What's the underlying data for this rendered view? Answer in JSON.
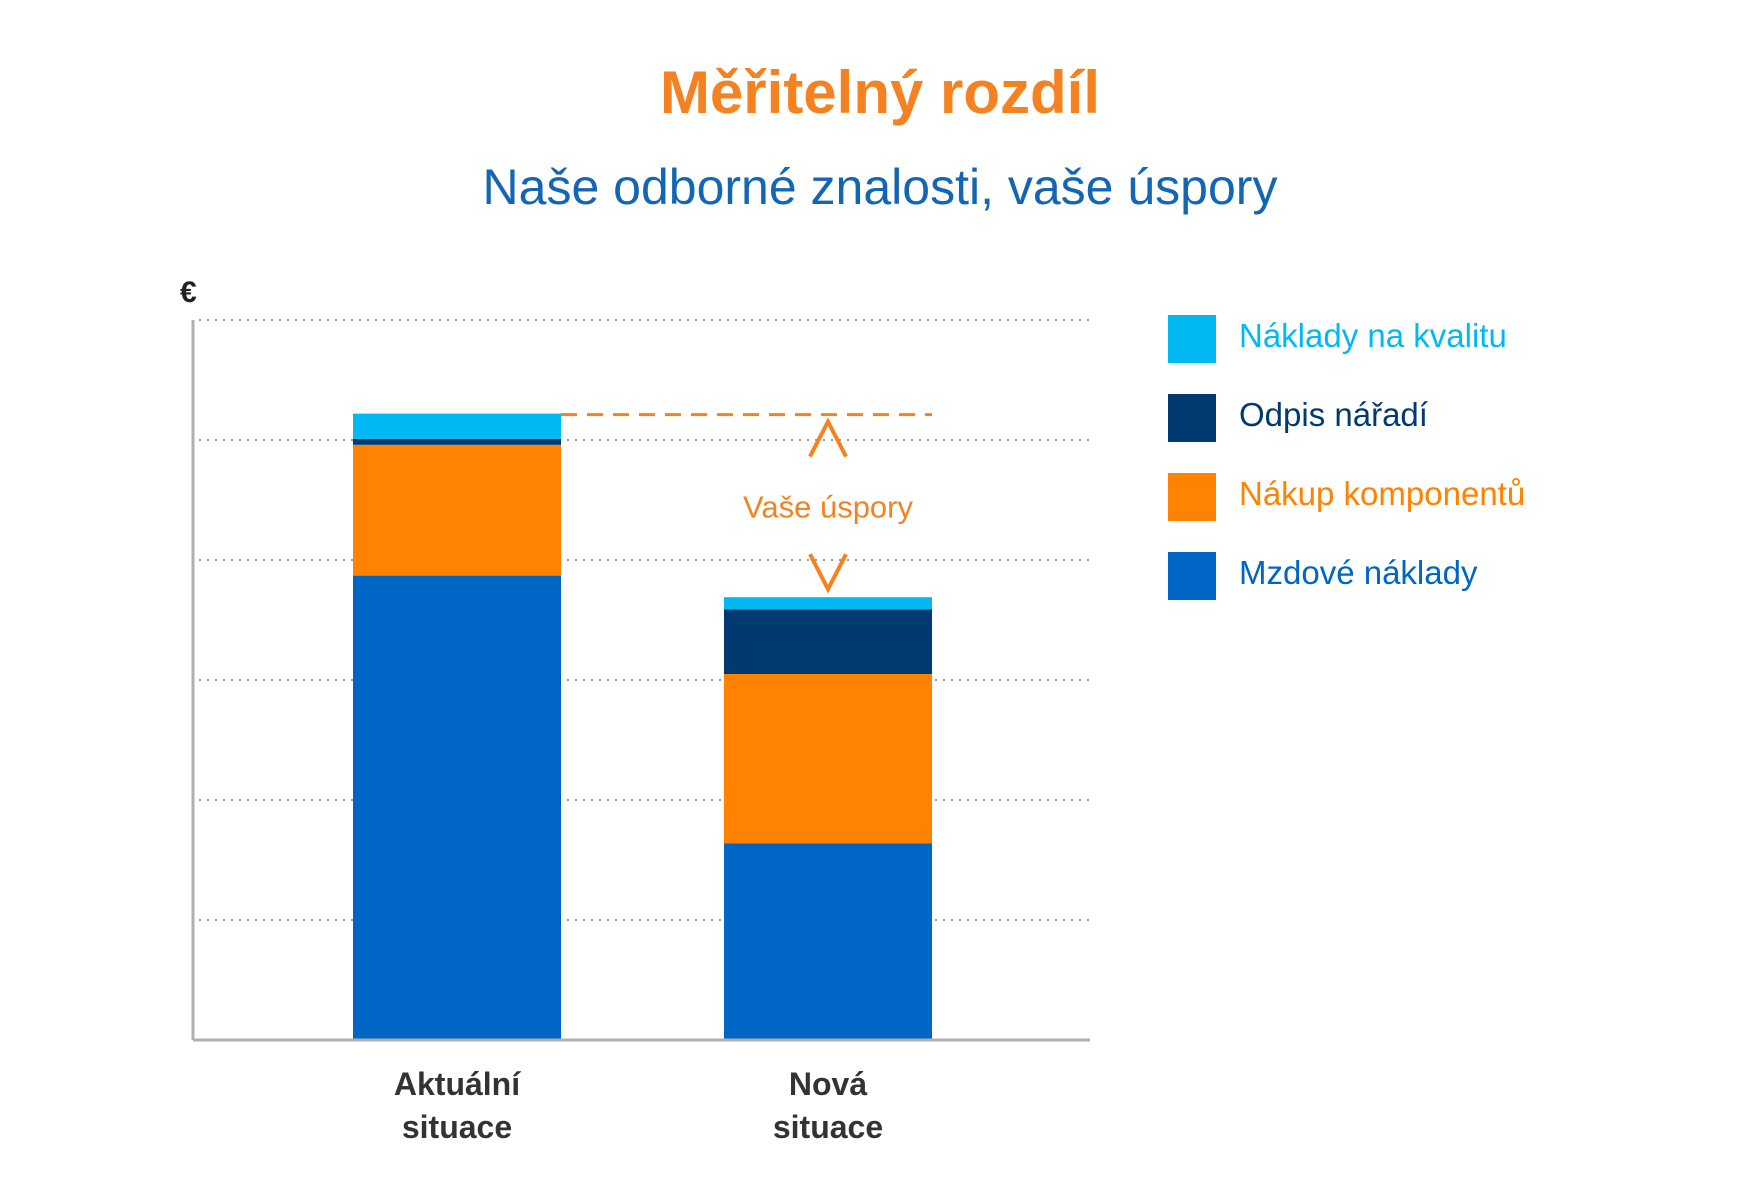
{
  "header": {
    "title": "Měřitelný rozdíl",
    "subtitle": "Naše odborné znalosti, vaše úspory"
  },
  "colors": {
    "title": "#f58220",
    "subtitle": "#1366b3",
    "axis": "#b0b0b0",
    "grid": "#9a9a9a",
    "category_text": "#333333",
    "annotation": "#f58220"
  },
  "chart_data": {
    "type": "bar",
    "stacked": true,
    "ylabel": "€",
    "ylim": [
      0,
      6
    ],
    "yticks": [
      1,
      2,
      3,
      4,
      5,
      6
    ],
    "grid": true,
    "legend_position": "right",
    "categories": [
      [
        "Aktuální",
        "situace"
      ],
      [
        "Nová",
        "situace"
      ]
    ],
    "series": [
      {
        "name": "Mzdové náklady",
        "color": "#0066c5",
        "values": [
          3.87,
          1.64
        ]
      },
      {
        "name": "Nákup komponentů",
        "color": "#ff8200",
        "values": [
          1.09,
          1.41
        ]
      },
      {
        "name": "Odpis nářadí",
        "color": "#003a70",
        "values": [
          0.05,
          0.54
        ]
      },
      {
        "name": "Náklady na kvalitu",
        "color": "#00b9f2",
        "values": [
          0.21,
          0.1
        ]
      }
    ],
    "legend_order": [
      3,
      2,
      1,
      0
    ],
    "annotation": {
      "text": "Vaše úspory",
      "from_category": 0,
      "to_category": 1
    }
  }
}
